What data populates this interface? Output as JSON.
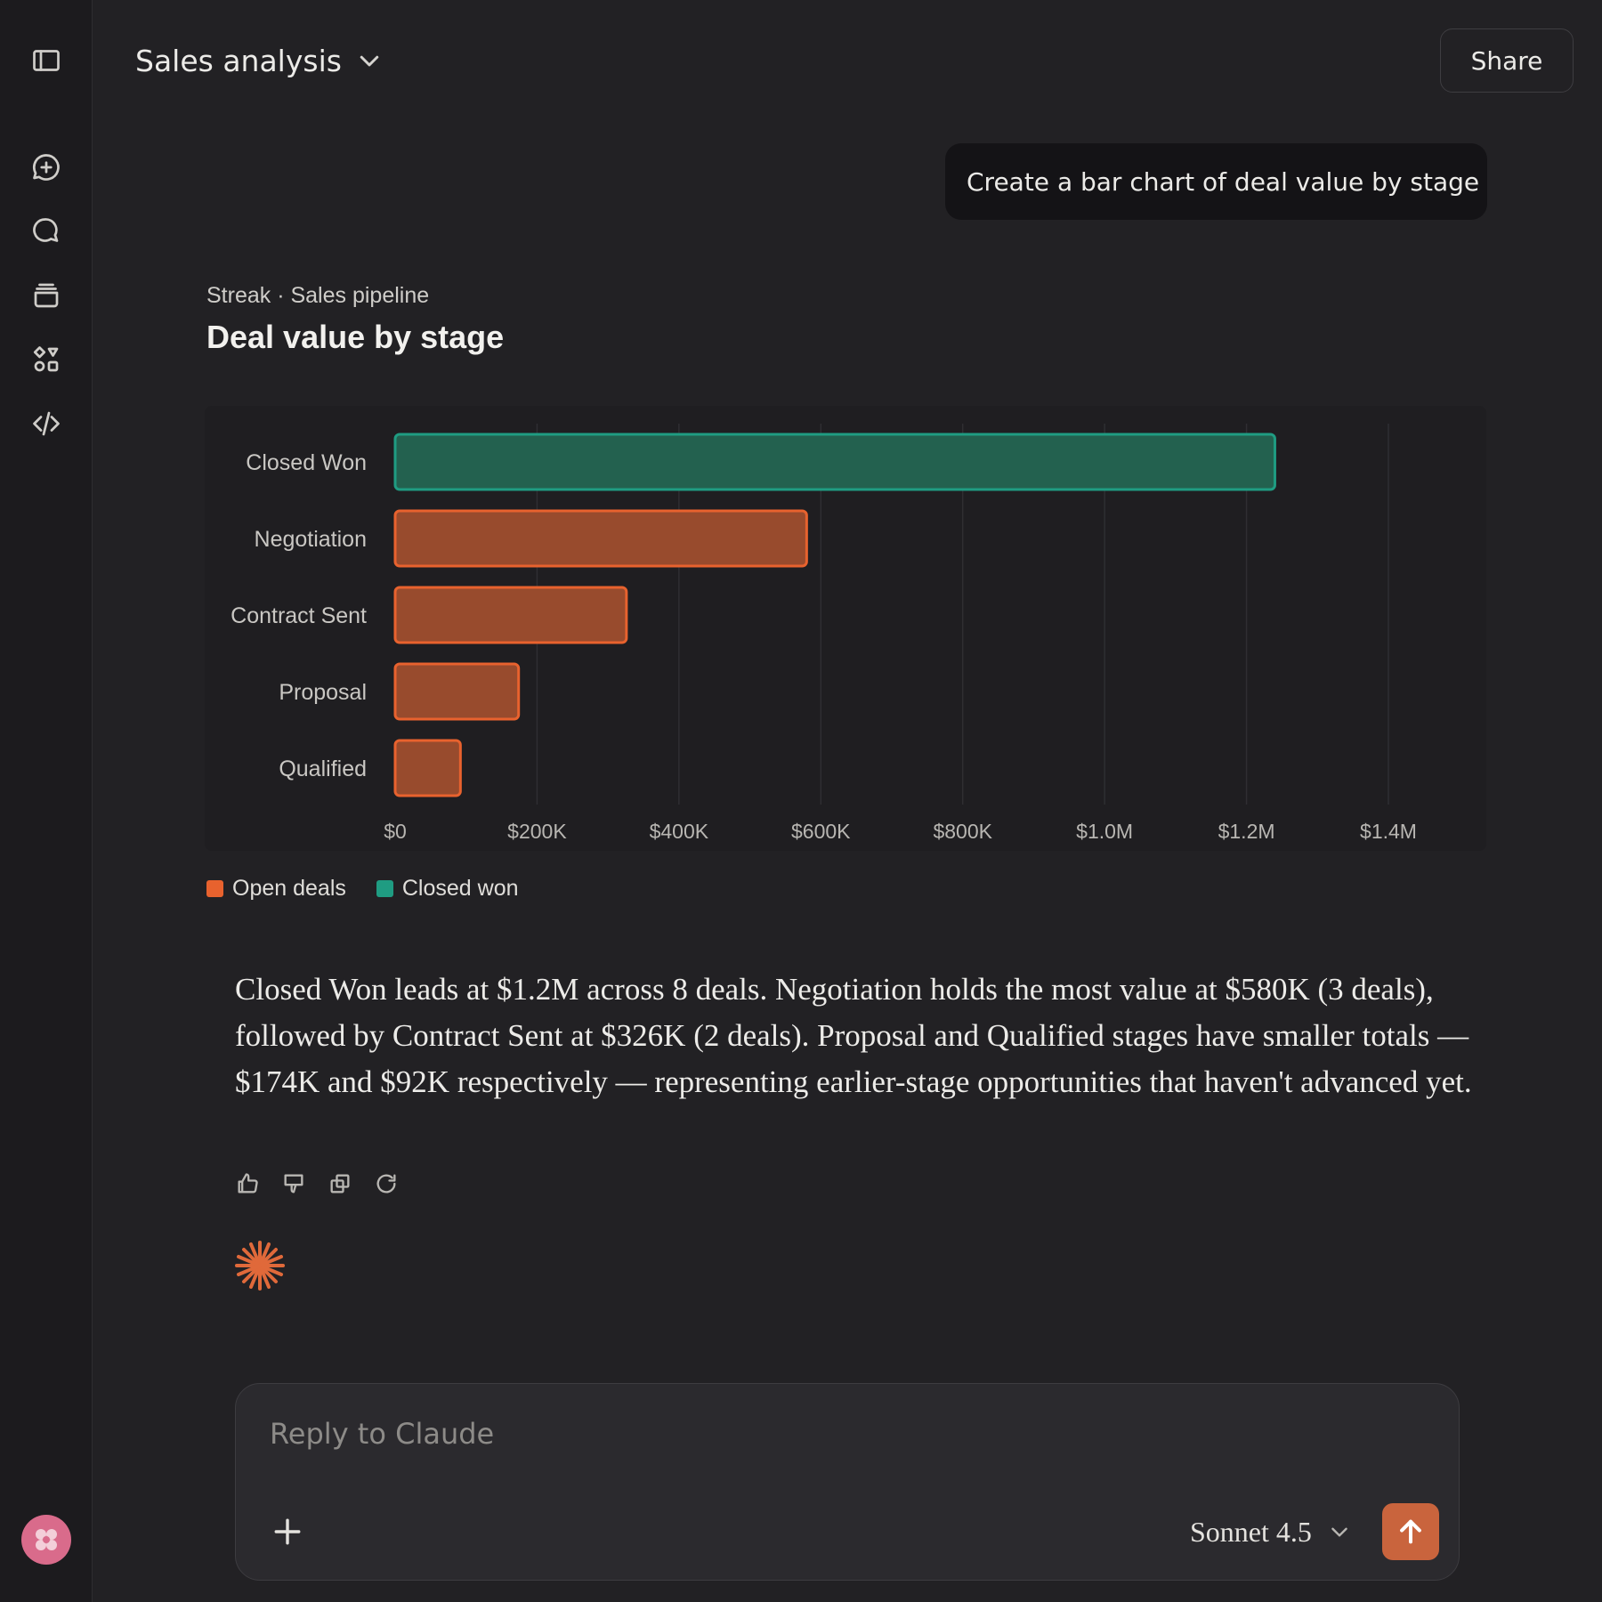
{
  "header": {
    "title": "Sales analysis",
    "share_label": "Share"
  },
  "sidebar": {
    "items": [
      {
        "name": "toggle-sidebar",
        "icon": "sidebar-icon"
      },
      {
        "name": "new-chat",
        "icon": "new-chat-icon"
      },
      {
        "name": "chats",
        "icon": "chats-icon"
      },
      {
        "name": "projects",
        "icon": "projects-icon"
      },
      {
        "name": "artifacts",
        "icon": "artifacts-icon"
      },
      {
        "name": "code",
        "icon": "code-icon"
      }
    ],
    "avatar_icon": "flower-icon"
  },
  "conversation": {
    "user_message": "Create a bar chart of deal value by stage",
    "artifact": {
      "subtitle": "Streak · Sales pipeline",
      "title": "Deal value by stage"
    },
    "answer": "Closed Won leads at $1.2M across 8 deals. Negotiation holds the most value at $580K (3 deals), followed by Contract Sent at $326K (2 deals). Proposal and Qualified stages have smaller totals — $174K and $92K respectively — representing earlier-stage opportunities that haven't advanced yet.",
    "feedback_icons": [
      "thumbs-up-icon",
      "thumbs-down-icon",
      "copy-icon",
      "retry-icon"
    ]
  },
  "chart_data": {
    "type": "bar",
    "orientation": "horizontal",
    "categories": [
      "Closed Won",
      "Negotiation",
      "Contract Sent",
      "Proposal",
      "Qualified"
    ],
    "values": [
      1240000,
      580000,
      326000,
      174000,
      92000
    ],
    "series_colors": [
      "#1f9c82",
      "#e8622e",
      "#e8622e",
      "#e8622e",
      "#e8622e"
    ],
    "xlim": [
      0,
      1400000
    ],
    "ticks": [
      "$0",
      "$200K",
      "$400K",
      "$600K",
      "$800K",
      "$1.0M",
      "$1.2M",
      "$1.4M"
    ],
    "tick_values": [
      0,
      200000,
      400000,
      600000,
      800000,
      1000000,
      1200000,
      1400000
    ],
    "grid": true,
    "legend": [
      {
        "label": "Open deals",
        "color": "#e8622e"
      },
      {
        "label": "Closed won",
        "color": "#1f9c82"
      }
    ],
    "legend_position": "bottom-left"
  },
  "composer": {
    "placeholder": "Reply to Claude",
    "model": "Sonnet 4.5"
  },
  "colors": {
    "accent": "#c9643d",
    "open": "#e8622e",
    "closed": "#1f9c82"
  }
}
